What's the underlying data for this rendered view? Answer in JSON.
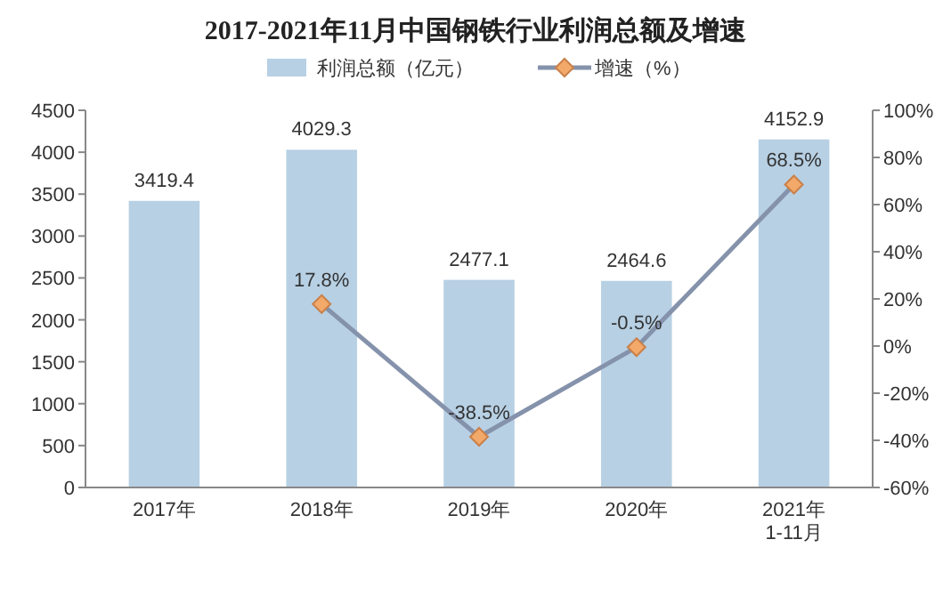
{
  "chart_data": {
    "type": "bar",
    "title": "2017-2021年11月中国钢铁行业利润总额及增速",
    "categories": [
      "2017年",
      "2018年",
      "2019年",
      "2020年",
      "2021年\n1-11月"
    ],
    "series": [
      {
        "name": "利润总额（亿元）",
        "color": "#b7d0e4",
        "values": [
          3419.4,
          4029.3,
          2477.1,
          2464.6,
          4152.9
        ],
        "value_labels": [
          "3419.4",
          "4029.3",
          "2477.1",
          "2464.6",
          "4152.9"
        ]
      },
      {
        "name": "增速（%）",
        "type": "line",
        "axis": "y2",
        "color": "#8592ab",
        "values": [
          null,
          17.8,
          -38.5,
          -0.5,
          68.5
        ],
        "value_labels": [
          null,
          "17.8%",
          "-38.5%",
          "-0.5%",
          "68.5%"
        ]
      }
    ],
    "ylim": [
      0,
      4500
    ],
    "yticks": [
      0,
      500,
      1000,
      1500,
      2000,
      2500,
      3000,
      3500,
      4000,
      4500
    ],
    "y2lim": [
      -60,
      100
    ],
    "y2ticks": [
      {
        "value": -60,
        "label": "-60%"
      },
      {
        "value": -40,
        "label": "-40%"
      },
      {
        "value": -20,
        "label": "-20%"
      },
      {
        "value": 0,
        "label": "0%"
      },
      {
        "value": 20,
        "label": "20%"
      },
      {
        "value": 40,
        "label": "40%"
      },
      {
        "value": 60,
        "label": "60%"
      },
      {
        "value": 80,
        "label": "80%"
      },
      {
        "value": 100,
        "label": "100%"
      }
    ],
    "legend": "top",
    "marker": "diamond",
    "grid": false
  }
}
